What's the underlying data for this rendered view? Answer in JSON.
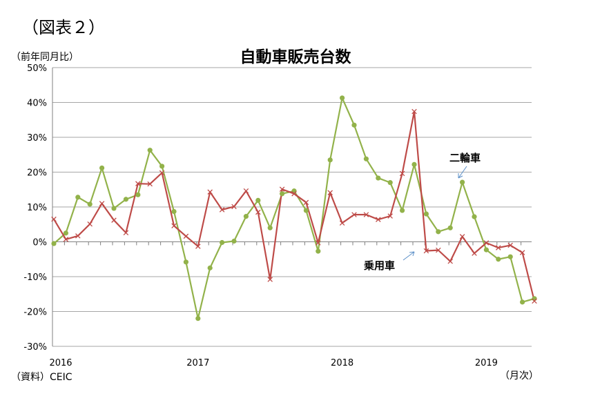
{
  "figure_label": "（図表２）",
  "source": "（資料）CEIC",
  "chart_data": {
    "type": "line",
    "title": "自動車販売台数",
    "ylabel": "（前年同月比）",
    "xlabel": "（月次）",
    "ylim": [
      -30,
      50
    ],
    "yticks": [
      "50%",
      "40%",
      "30%",
      "20%",
      "10%",
      "0%",
      "-10%",
      "-20%",
      "-30%"
    ],
    "ytick_values": [
      50,
      40,
      30,
      20,
      10,
      0,
      -10,
      -20,
      -30
    ],
    "x_tick_labels": [
      "2016",
      "2017",
      "2018",
      "2019"
    ],
    "x_tick_month_index": [
      0,
      12,
      24,
      36
    ],
    "grid": "horizontal",
    "series": [
      {
        "name": "二輪車",
        "color": "#92B24A",
        "marker": "circle",
        "values": [
          -0.5,
          2.5,
          12.8,
          10.8,
          21.2,
          9.6,
          12.2,
          13.5,
          26.3,
          21.7,
          8.7,
          -5.8,
          -22.0,
          -7.5,
          -0.2,
          0.2,
          7.3,
          11.9,
          4.0,
          13.8,
          14.6,
          9.0,
          -2.7,
          23.5,
          41.3,
          33.5,
          23.8,
          18.3,
          17.0,
          9.0,
          22.2,
          8.0,
          2.9,
          4.0,
          17.1,
          7.2,
          -2.3,
          -5.0,
          -4.3,
          -17.3,
          -16.3
        ]
      },
      {
        "name": "乗用車",
        "color": "#BE4B48",
        "marker": "x",
        "values": [
          6.5,
          0.7,
          1.7,
          5.1,
          11.0,
          6.2,
          2.6,
          16.7,
          16.6,
          19.8,
          4.6,
          1.6,
          -1.3,
          14.3,
          9.2,
          10.1,
          14.6,
          8.5,
          -10.8,
          15.1,
          13.8,
          11.3,
          -0.3,
          14.1,
          5.4,
          7.8,
          7.8,
          6.4,
          7.4,
          19.6,
          37.4,
          -2.6,
          -2.4,
          -5.6,
          1.5,
          -3.3,
          -0.3,
          -1.7,
          -1.0,
          -3.1,
          -17.0
        ]
      }
    ],
    "annotations": [
      {
        "text": "二輪車",
        "series": "二輪車"
      },
      {
        "text": "乗用車",
        "series": "乗用車"
      }
    ]
  }
}
